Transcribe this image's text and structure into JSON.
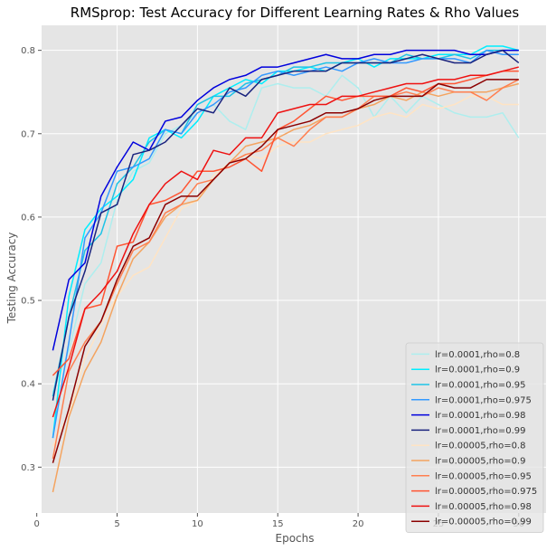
{
  "chart_data": {
    "type": "line",
    "title": "RMSprop: Test Accuracy for Different Learning Rates & Rho Values",
    "xlabel": "Epochs",
    "ylabel": "Testing Accuracy",
    "xlim": [
      0.3,
      31.7
    ],
    "ylim": [
      0.245,
      0.83
    ],
    "xticks": [
      0,
      5,
      10,
      15,
      20,
      25,
      30
    ],
    "yticks": [
      0.3,
      0.4,
      0.5,
      0.6,
      0.7,
      0.8
    ],
    "grid": true,
    "legend_position": "bottom-right",
    "x": [
      1,
      2,
      3,
      4,
      5,
      6,
      7,
      8,
      9,
      10,
      11,
      12,
      13,
      14,
      15,
      16,
      17,
      18,
      19,
      20,
      21,
      22,
      23,
      24,
      25,
      26,
      27,
      28,
      29,
      30
    ],
    "series": [
      {
        "name": "lr=0.0001,rho=0.8",
        "color": "#aeeeee",
        "values": [
          0.39,
          0.44,
          0.52,
          0.545,
          0.62,
          0.655,
          0.665,
          0.7,
          0.71,
          0.725,
          0.735,
          0.715,
          0.705,
          0.755,
          0.76,
          0.755,
          0.755,
          0.745,
          0.77,
          0.755,
          0.72,
          0.745,
          0.725,
          0.745,
          0.735,
          0.725,
          0.72,
          0.72,
          0.725,
          0.695
        ]
      },
      {
        "name": "lr=0.0001,rho=0.9",
        "color": "#00eeff",
        "values": [
          0.335,
          0.505,
          0.585,
          0.61,
          0.625,
          0.645,
          0.695,
          0.705,
          0.695,
          0.715,
          0.745,
          0.755,
          0.765,
          0.76,
          0.775,
          0.775,
          0.78,
          0.775,
          0.785,
          0.79,
          0.78,
          0.79,
          0.79,
          0.79,
          0.795,
          0.795,
          0.795,
          0.805,
          0.805,
          0.8
        ]
      },
      {
        "name": "lr=0.0001,rho=0.95",
        "color": "#1ec3e6",
        "values": [
          0.385,
          0.48,
          0.56,
          0.58,
          0.64,
          0.66,
          0.69,
          0.705,
          0.7,
          0.735,
          0.745,
          0.745,
          0.76,
          0.765,
          0.77,
          0.78,
          0.78,
          0.785,
          0.785,
          0.785,
          0.785,
          0.785,
          0.795,
          0.79,
          0.79,
          0.795,
          0.79,
          0.8,
          0.8,
          0.8
        ]
      },
      {
        "name": "lr=0.0001,rho=0.975",
        "color": "#3399ff",
        "values": [
          0.335,
          0.45,
          0.575,
          0.605,
          0.655,
          0.66,
          0.67,
          0.705,
          0.7,
          0.725,
          0.735,
          0.75,
          0.755,
          0.77,
          0.775,
          0.77,
          0.775,
          0.78,
          0.775,
          0.785,
          0.79,
          0.785,
          0.785,
          0.79,
          0.79,
          0.79,
          0.785,
          0.8,
          0.795,
          0.795
        ]
      },
      {
        "name": "lr=0.0001,rho=0.98",
        "color": "#0000dd",
        "values": [
          0.44,
          0.525,
          0.545,
          0.625,
          0.66,
          0.69,
          0.68,
          0.715,
          0.72,
          0.74,
          0.755,
          0.765,
          0.77,
          0.78,
          0.78,
          0.785,
          0.79,
          0.795,
          0.79,
          0.79,
          0.795,
          0.795,
          0.8,
          0.8,
          0.8,
          0.8,
          0.795,
          0.795,
          0.8,
          0.8
        ]
      },
      {
        "name": "lr=0.0001,rho=0.99",
        "color": "#1a237e",
        "values": [
          0.38,
          0.48,
          0.535,
          0.605,
          0.615,
          0.675,
          0.68,
          0.69,
          0.71,
          0.73,
          0.725,
          0.755,
          0.745,
          0.765,
          0.77,
          0.775,
          0.775,
          0.775,
          0.785,
          0.785,
          0.785,
          0.785,
          0.79,
          0.795,
          0.79,
          0.785,
          0.785,
          0.795,
          0.8,
          0.785
        ]
      },
      {
        "name": "lr=0.00005,rho=0.8",
        "color": "#ffe4c4",
        "values": [
          0.325,
          0.365,
          0.43,
          0.47,
          0.505,
          0.53,
          0.54,
          0.575,
          0.61,
          0.62,
          0.65,
          0.665,
          0.675,
          0.67,
          0.685,
          0.69,
          0.69,
          0.7,
          0.705,
          0.71,
          0.72,
          0.725,
          0.72,
          0.735,
          0.73,
          0.735,
          0.745,
          0.745,
          0.735,
          0.735
        ]
      },
      {
        "name": "lr=0.00005,rho=0.9",
        "color": "#f4a460",
        "values": [
          0.27,
          0.36,
          0.415,
          0.45,
          0.505,
          0.55,
          0.57,
          0.6,
          0.615,
          0.62,
          0.645,
          0.665,
          0.685,
          0.69,
          0.695,
          0.705,
          0.71,
          0.72,
          0.72,
          0.73,
          0.735,
          0.745,
          0.74,
          0.75,
          0.745,
          0.75,
          0.75,
          0.75,
          0.755,
          0.76
        ]
      },
      {
        "name": "lr=0.00005,rho=0.95",
        "color": "#ff7f50",
        "values": [
          0.31,
          0.415,
          0.45,
          0.475,
          0.52,
          0.56,
          0.57,
          0.605,
          0.615,
          0.64,
          0.645,
          0.665,
          0.675,
          0.68,
          0.695,
          0.685,
          0.705,
          0.72,
          0.72,
          0.73,
          0.745,
          0.745,
          0.75,
          0.745,
          0.755,
          0.75,
          0.75,
          0.74,
          0.755,
          0.765
        ]
      },
      {
        "name": "lr=0.00005,rho=0.975",
        "color": "#ff5533",
        "values": [
          0.41,
          0.43,
          0.49,
          0.495,
          0.565,
          0.57,
          0.615,
          0.62,
          0.63,
          0.655,
          0.655,
          0.66,
          0.67,
          0.655,
          0.705,
          0.715,
          0.73,
          0.745,
          0.74,
          0.745,
          0.745,
          0.745,
          0.755,
          0.75,
          0.76,
          0.76,
          0.765,
          0.77,
          0.775,
          0.775
        ]
      },
      {
        "name": "lr=0.00005,rho=0.98",
        "color": "#ee1111",
        "values": [
          0.36,
          0.42,
          0.49,
          0.51,
          0.535,
          0.58,
          0.615,
          0.64,
          0.655,
          0.645,
          0.68,
          0.675,
          0.695,
          0.695,
          0.725,
          0.73,
          0.735,
          0.735,
          0.745,
          0.745,
          0.75,
          0.755,
          0.76,
          0.76,
          0.765,
          0.765,
          0.77,
          0.77,
          0.775,
          0.78
        ]
      },
      {
        "name": "lr=0.00005,rho=0.99",
        "color": "#8b0000",
        "values": [
          0.305,
          0.37,
          0.445,
          0.475,
          0.525,
          0.565,
          0.575,
          0.615,
          0.625,
          0.625,
          0.645,
          0.665,
          0.67,
          0.685,
          0.705,
          0.71,
          0.715,
          0.725,
          0.725,
          0.73,
          0.74,
          0.745,
          0.745,
          0.745,
          0.76,
          0.755,
          0.755,
          0.765,
          0.765,
          0.765
        ]
      }
    ]
  }
}
